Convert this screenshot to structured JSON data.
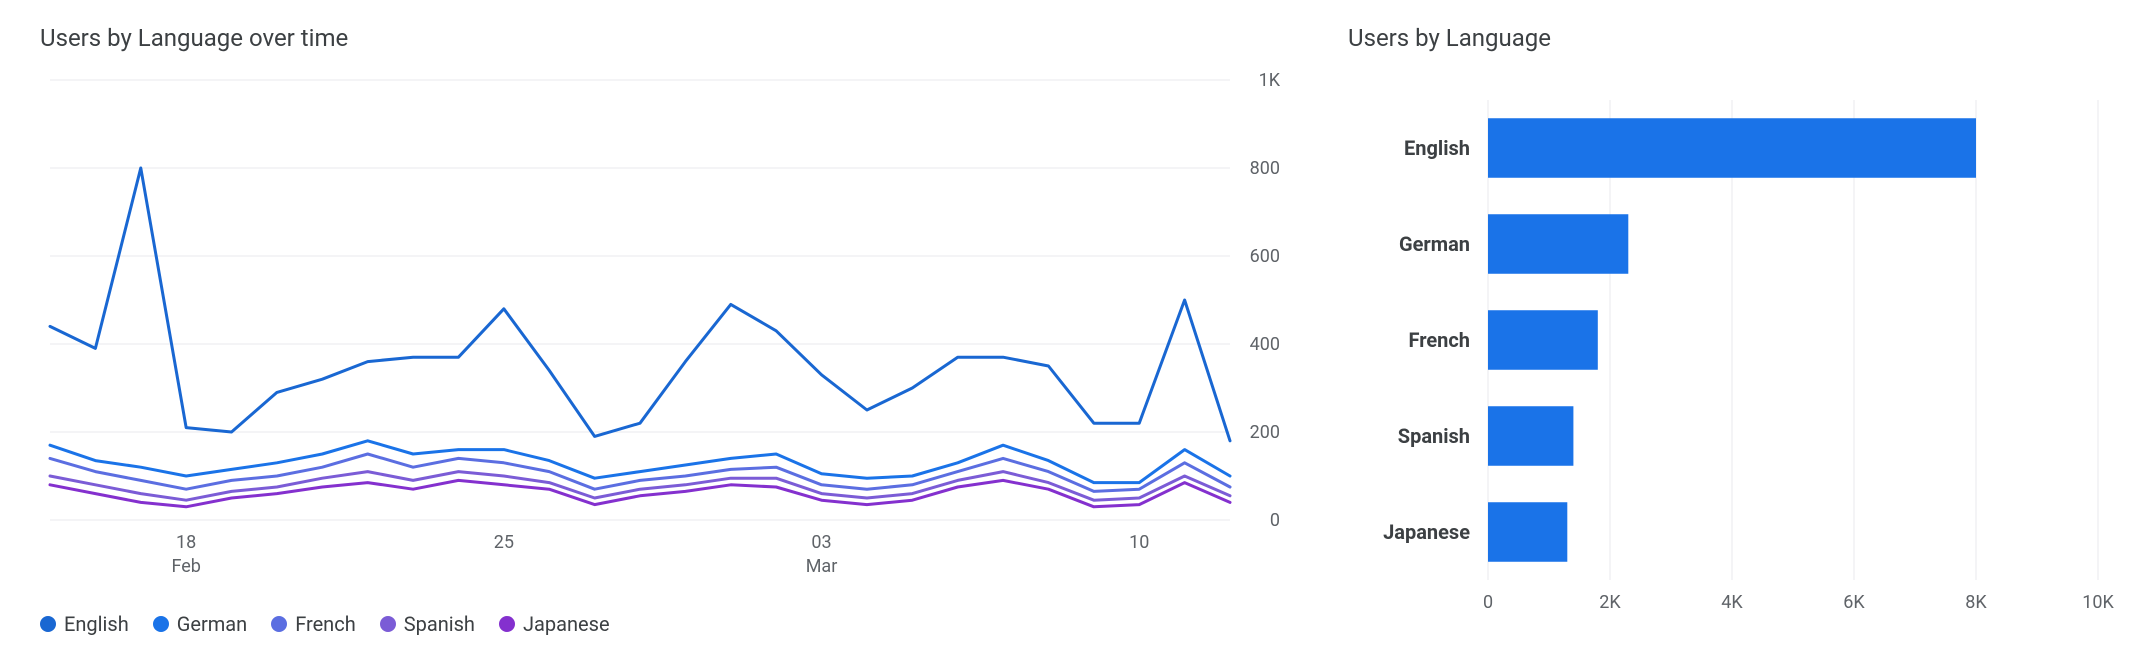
{
  "line_chart": {
    "type": "line",
    "title": "Users by Language over time",
    "background_color": "#ffffff",
    "grid_color": "#e8eaed",
    "axis_label_color": "#5f6368",
    "axis_label_fontsize": 18,
    "title_fontsize": 24,
    "line_width": 3,
    "y": {
      "min": 0,
      "max": 1000,
      "ticks": [
        0,
        200,
        400,
        600,
        800,
        1000
      ],
      "tick_labels": [
        "0",
        "200",
        "400",
        "600",
        "800",
        "1K"
      ]
    },
    "x": {
      "count": 27,
      "ticks": [
        3,
        10,
        17,
        24
      ],
      "tick_labels": [
        "18",
        "25",
        "03",
        "10"
      ],
      "month_marks": [
        {
          "index": 3,
          "label": "Feb"
        },
        {
          "index": 17,
          "label": "Mar"
        }
      ]
    },
    "series": [
      {
        "name": "English",
        "color": "#1967d2",
        "values": [
          440,
          390,
          800,
          210,
          200,
          290,
          320,
          360,
          370,
          370,
          480,
          340,
          190,
          220,
          360,
          490,
          430,
          330,
          250,
          300,
          370,
          370,
          350,
          220,
          220,
          500,
          180
        ]
      },
      {
        "name": "German",
        "color": "#1a73e8",
        "values": [
          170,
          135,
          120,
          100,
          115,
          130,
          150,
          180,
          150,
          160,
          160,
          135,
          95,
          110,
          125,
          140,
          150,
          105,
          95,
          100,
          130,
          170,
          135,
          85,
          85,
          160,
          100
        ]
      },
      {
        "name": "French",
        "color": "#5b6ee1",
        "values": [
          140,
          110,
          90,
          70,
          90,
          100,
          120,
          150,
          120,
          140,
          130,
          110,
          70,
          90,
          100,
          115,
          120,
          80,
          70,
          80,
          110,
          140,
          110,
          65,
          70,
          130,
          75
        ]
      },
      {
        "name": "Spanish",
        "color": "#7b5cd6",
        "values": [
          100,
          80,
          60,
          45,
          65,
          75,
          95,
          110,
          90,
          110,
          100,
          85,
          50,
          70,
          80,
          95,
          95,
          60,
          50,
          60,
          90,
          110,
          85,
          45,
          50,
          100,
          55
        ]
      },
      {
        "name": "Japanese",
        "color": "#8430ce",
        "values": [
          80,
          60,
          40,
          30,
          50,
          60,
          75,
          85,
          70,
          90,
          80,
          70,
          35,
          55,
          65,
          80,
          75,
          45,
          35,
          45,
          75,
          90,
          70,
          30,
          35,
          85,
          40
        ]
      }
    ],
    "legend_fontsize": 20
  },
  "bar_chart": {
    "type": "bar",
    "title": "Users by Language",
    "background_color": "#ffffff",
    "bar_color": "#1a73e8",
    "grid_color": "#e8eaed",
    "axis_label_color": "#5f6368",
    "axis_label_fontsize": 18,
    "title_fontsize": 24,
    "row_label_fontsize": 20,
    "row_label_fontweight": "700",
    "x": {
      "min": 0,
      "max": 10000,
      "ticks": [
        0,
        2000,
        4000,
        6000,
        8000,
        10000
      ],
      "tick_labels": [
        "0",
        "2K",
        "4K",
        "6K",
        "8K",
        "10K"
      ]
    },
    "categories": [
      "English",
      "German",
      "French",
      "Spanish",
      "Japanese"
    ],
    "values": [
      8000,
      2300,
      1800,
      1400,
      1300
    ],
    "bar_height_ratio": 0.62
  }
}
